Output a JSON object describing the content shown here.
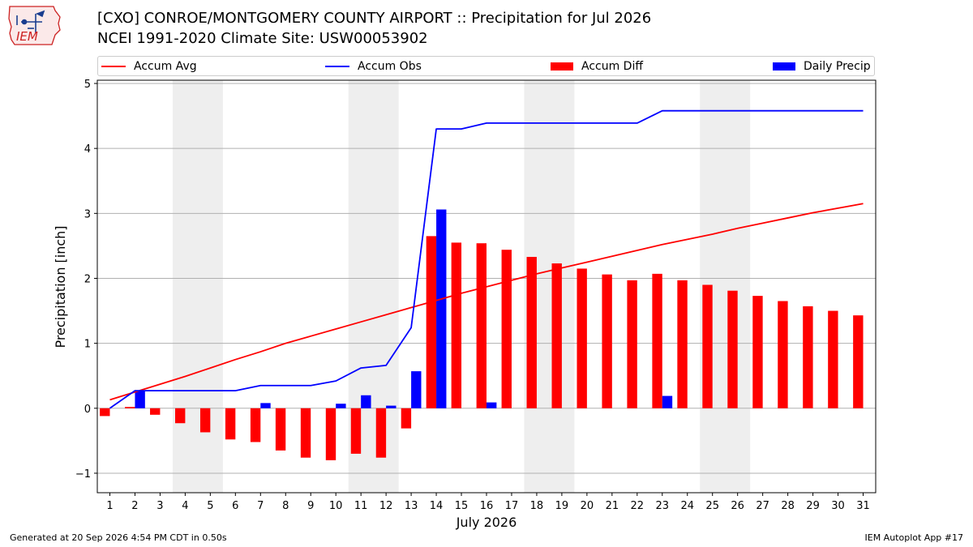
{
  "header": {
    "title_line1": "[CXO] CONROE/MONTGOMERY COUNTY AIRPORT :: Precipitation for Jul 2026",
    "title_line2": "NCEI 1991-2020 Climate Site: USW00053902",
    "logo_text": "IEM"
  },
  "legend": {
    "accum_avg": "Accum Avg",
    "accum_obs": "Accum Obs",
    "accum_diff": "Accum Diff",
    "daily_precip": "Daily Precip"
  },
  "footer": {
    "generated": "Generated at 20 Sep 2026 4:54 PM CDT in 0.50s",
    "app": "IEM Autoplot App #17"
  },
  "colors": {
    "accum_avg": "#ff0000",
    "accum_obs": "#0000ff",
    "accum_diff": "#ff0000",
    "daily_precip": "#0000ff",
    "weekend_shade": "#eeeeee",
    "grid": "#b0b0b0"
  },
  "chart_data": {
    "type": "bar",
    "xlabel": "July 2026",
    "ylabel": "Precipitation [inch]",
    "ylim": [
      -1.3,
      5.05
    ],
    "xlim": [
      0.5,
      31.5
    ],
    "yticks": [
      -1,
      0,
      1,
      2,
      3,
      4,
      5
    ],
    "ytick_labels": [
      "−1",
      "0",
      "1",
      "2",
      "3",
      "4",
      "5"
    ],
    "grid": "horizontal",
    "legend_position": "top",
    "days": [
      1,
      2,
      3,
      4,
      5,
      6,
      7,
      8,
      9,
      10,
      11,
      12,
      13,
      14,
      15,
      16,
      17,
      18,
      19,
      20,
      21,
      22,
      23,
      24,
      25,
      26,
      27,
      28,
      29,
      30,
      31
    ],
    "weekend_spans": [
      [
        4,
        5
      ],
      [
        11,
        12
      ],
      [
        18,
        19
      ],
      [
        25,
        26
      ]
    ],
    "series": [
      {
        "name": "Accum Avg",
        "kind": "line",
        "values": [
          0.13,
          0.25,
          0.37,
          0.49,
          0.62,
          0.75,
          0.87,
          1.0,
          1.11,
          1.22,
          1.33,
          1.44,
          1.55,
          1.66,
          1.77,
          1.87,
          1.97,
          2.07,
          2.16,
          2.25,
          2.34,
          2.43,
          2.52,
          2.6,
          2.68,
          2.77,
          2.85,
          2.93,
          3.01,
          3.08,
          3.15
        ]
      },
      {
        "name": "Accum Obs",
        "kind": "line",
        "values": [
          0.0,
          0.27,
          0.27,
          0.27,
          0.27,
          0.27,
          0.35,
          0.35,
          0.35,
          0.42,
          0.62,
          0.66,
          1.24,
          4.3,
          4.3,
          4.39,
          4.39,
          4.39,
          4.39,
          4.39,
          4.39,
          4.39,
          4.58,
          4.58,
          4.58,
          4.58,
          4.58,
          4.58,
          4.58,
          4.58,
          4.58
        ]
      },
      {
        "name": "Accum Diff",
        "kind": "bar",
        "values": [
          -0.12,
          0.02,
          -0.1,
          -0.23,
          -0.37,
          -0.48,
          -0.52,
          -0.65,
          -0.76,
          -0.8,
          -0.7,
          -0.76,
          -0.31,
          2.65,
          2.55,
          2.54,
          2.44,
          2.33,
          2.23,
          2.15,
          2.06,
          1.97,
          2.07,
          1.97,
          1.9,
          1.81,
          1.73,
          1.65,
          1.57,
          1.5,
          1.43
        ]
      },
      {
        "name": "Daily Precip",
        "kind": "bar",
        "values": [
          0.0,
          0.27,
          0.0,
          0.0,
          0.0,
          0.0,
          0.08,
          0.0,
          0.0,
          0.07,
          0.2,
          0.04,
          0.57,
          3.06,
          0.0,
          0.09,
          0.0,
          0.0,
          0.0,
          0.0,
          0.0,
          0.0,
          0.19,
          0.0,
          0.0,
          0.0,
          0.0,
          0.0,
          0.0,
          0.0,
          0.0
        ]
      }
    ]
  }
}
